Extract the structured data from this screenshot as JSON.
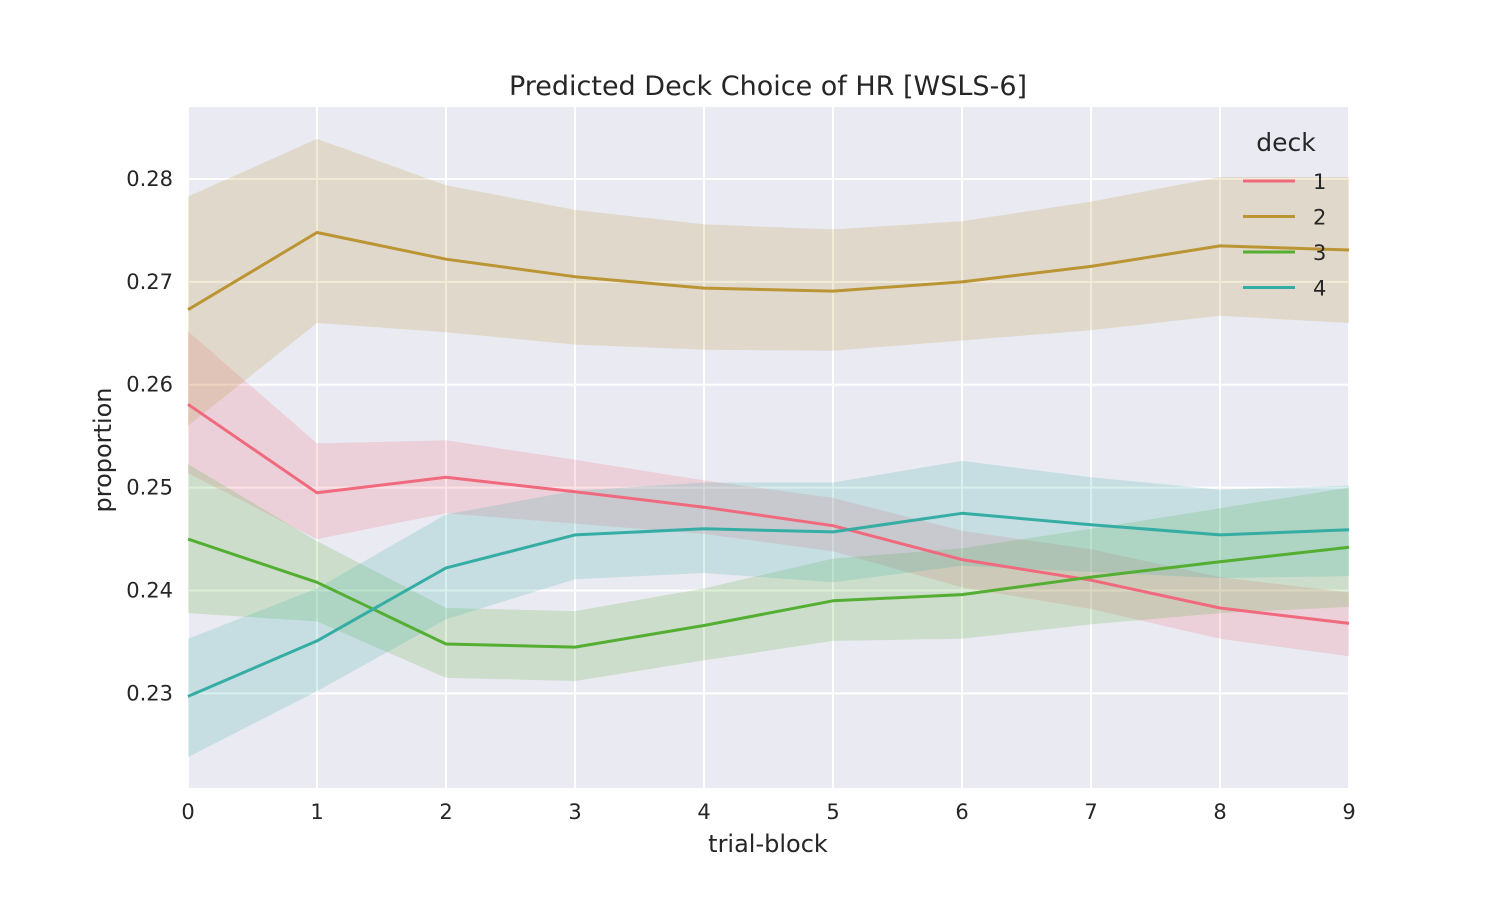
{
  "chart_data": {
    "type": "line",
    "title": "Predicted Deck Choice of HR [WSLS-6]",
    "xlabel": "trial-block",
    "ylabel": "proportion",
    "x": [
      0,
      1,
      2,
      3,
      4,
      5,
      6,
      7,
      8,
      9
    ],
    "x_ticks": [
      "0",
      "1",
      "2",
      "3",
      "4",
      "5",
      "6",
      "7",
      "8",
      "9"
    ],
    "y_ticks": [
      "0.23",
      "0.24",
      "0.25",
      "0.26",
      "0.27",
      "0.28"
    ],
    "y_tick_values": [
      0.23,
      0.24,
      0.25,
      0.26,
      0.27,
      0.28
    ],
    "xlim": [
      0,
      9
    ],
    "ylim": [
      0.2208,
      0.287
    ],
    "grid": true,
    "legend": {
      "title": "deck",
      "position": "top-right"
    },
    "series": [
      {
        "name": "1",
        "color": "#f0697c",
        "values": [
          0.2581,
          0.2495,
          0.251,
          0.2496,
          0.2481,
          0.2463,
          0.243,
          0.241,
          0.2383,
          0.2368
        ],
        "ci_low": [
          0.2514,
          0.245,
          0.2475,
          0.2465,
          0.2455,
          0.2438,
          0.2403,
          0.2382,
          0.2353,
          0.2336
        ],
        "ci_high": [
          0.2652,
          0.2543,
          0.2546,
          0.2527,
          0.2507,
          0.249,
          0.2458,
          0.244,
          0.2413,
          0.2398
        ]
      },
      {
        "name": "2",
        "color": "#bb9433",
        "values": [
          0.2673,
          0.2748,
          0.2722,
          0.2705,
          0.2694,
          0.2691,
          0.27,
          0.2715,
          0.2735,
          0.2731
        ],
        "ci_low": [
          0.256,
          0.266,
          0.2651,
          0.2639,
          0.2634,
          0.2633,
          0.2643,
          0.2653,
          0.2667,
          0.266
        ],
        "ci_high": [
          0.2783,
          0.2839,
          0.2794,
          0.277,
          0.2756,
          0.2751,
          0.2759,
          0.2778,
          0.2802,
          0.2802
        ]
      },
      {
        "name": "3",
        "color": "#53ae32",
        "values": [
          0.245,
          0.2408,
          0.2348,
          0.2345,
          0.2366,
          0.239,
          0.2396,
          0.2413,
          0.2428,
          0.2442
        ],
        "ci_low": [
          0.2378,
          0.237,
          0.2315,
          0.2312,
          0.2332,
          0.2351,
          0.2353,
          0.2367,
          0.2378,
          0.2384
        ],
        "ci_high": [
          0.2523,
          0.2448,
          0.2383,
          0.238,
          0.2402,
          0.2431,
          0.2441,
          0.246,
          0.248,
          0.25
        ]
      },
      {
        "name": "4",
        "color": "#36ada4",
        "values": [
          0.2297,
          0.2351,
          0.2422,
          0.2454,
          0.246,
          0.2457,
          0.2475,
          0.2464,
          0.2454,
          0.2459
        ],
        "ci_low": [
          0.2238,
          0.2302,
          0.2372,
          0.2411,
          0.2417,
          0.2408,
          0.2424,
          0.2418,
          0.2412,
          0.2414
        ],
        "ci_high": [
          0.2353,
          0.2402,
          0.2474,
          0.2497,
          0.2505,
          0.2505,
          0.2526,
          0.251,
          0.2498,
          0.2502
        ]
      }
    ]
  }
}
